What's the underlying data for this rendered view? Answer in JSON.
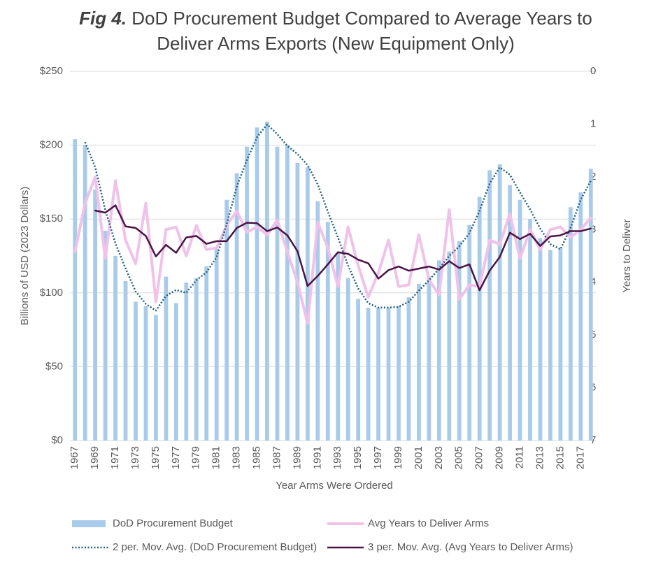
{
  "chart_data": {
    "type": "combo",
    "title_prefix": "Fig 4.",
    "title": "DoD Procurement Budget Compared to Average Years to Deliver Arms Exports (New Equipment Only)",
    "x_label": "Year Arms Were Ordered",
    "y_label": "Billions of USD (2023 Dollars)",
    "y2_label": "Years to Deliver",
    "categories": [
      "1967",
      null,
      "1969",
      null,
      "1971",
      null,
      "1973",
      null,
      "1975",
      null,
      "1977",
      null,
      "1979",
      null,
      "1981",
      null,
      "1983",
      null,
      "1985",
      null,
      "1987",
      null,
      "1989",
      null,
      "1991",
      null,
      "1993",
      null,
      "1995",
      null,
      "1997",
      null,
      "1999",
      null,
      "2001",
      null,
      "2003",
      null,
      "2005",
      null,
      "2007",
      null,
      "2009",
      null,
      "2011",
      null,
      "2013",
      null,
      "2015",
      null,
      "2017",
      null
    ],
    "ylim": [
      0,
      250
    ],
    "yticks": [
      {
        "value": 0,
        "label": "$0"
      },
      {
        "value": 50,
        "label": "$50"
      },
      {
        "value": 100,
        "label": "$100"
      },
      {
        "value": 150,
        "label": "$150"
      },
      {
        "value": 200,
        "label": "$200"
      },
      {
        "value": 250,
        "label": "$250"
      }
    ],
    "y2lim": [
      7,
      0
    ],
    "y2ticks": [
      0,
      1,
      2,
      3,
      4,
      5,
      6,
      7
    ],
    "grid": true,
    "legend": "bottom",
    "series": [
      {
        "name": "DoD Procurement Budget",
        "type": "bar",
        "color": "#a9cbea",
        "values": [
          204,
          200,
          170,
          142,
          125,
          108,
          94,
          91,
          85,
          111,
          93,
          107,
          110,
          118,
          130,
          163,
          181,
          199,
          212,
          216,
          199,
          200,
          188,
          185,
          162,
          148,
          127,
          110,
          96,
          90,
          90,
          90,
          91,
          97,
          106,
          111,
          122,
          128,
          135,
          146,
          165,
          183,
          187,
          173,
          163,
          150,
          137,
          129,
          130,
          158,
          168,
          184
        ]
      },
      {
        "name": "Avg Years to Deliver Arms",
        "type": "line",
        "axis": "y2",
        "color": "#f0c2e9",
        "width": 4,
        "values": [
          3.42,
          2.5,
          2.0,
          3.55,
          2.07,
          3.2,
          3.65,
          2.5,
          4.37,
          3.0,
          2.95,
          3.5,
          2.92,
          3.38,
          3.35,
          2.92,
          2.65,
          3.05,
          2.95,
          3.1,
          2.82,
          3.42,
          4.0,
          4.78,
          2.86,
          3.35,
          4.08,
          2.95,
          3.68,
          4.28,
          3.82,
          3.2,
          4.08,
          4.05,
          3.1,
          3.95,
          4.24,
          2.62,
          4.32,
          4.05,
          4.08,
          3.2,
          3.28,
          2.7,
          3.55,
          3.0,
          3.38,
          3.0,
          2.95,
          3.15,
          3.0,
          2.78
        ]
      },
      {
        "name": "2 per. Mov. Avg. (DoD Procurement Budget)",
        "type": "line",
        "dash": "dotted",
        "color": "#1f5f7f",
        "width": 2.5,
        "values": [
          null,
          202,
          185,
          156,
          133.5,
          116.5,
          101,
          92.5,
          88,
          98,
          102,
          100,
          108.5,
          114,
          124,
          146.5,
          172,
          190,
          205.5,
          214,
          207.5,
          199.5,
          194,
          186.5,
          173.5,
          155,
          137.5,
          118.5,
          103,
          93,
          90,
          90,
          90.5,
          94,
          101.5,
          108.5,
          116.5,
          125,
          131.5,
          140.5,
          155.5,
          174,
          185,
          180,
          168,
          156.5,
          143.5,
          133,
          129.5,
          144,
          163,
          176
        ]
      },
      {
        "name": "3 per. Mov. Avg. (Avg Years to Deliver Arms)",
        "type": "line",
        "axis": "y2",
        "color": "#4b1446",
        "width": 2.5,
        "values": [
          null,
          null,
          2.64,
          2.68,
          2.54,
          2.94,
          2.97,
          3.12,
          3.51,
          3.29,
          3.44,
          3.15,
          3.12,
          3.27,
          3.22,
          3.22,
          2.97,
          2.87,
          2.88,
          3.03,
          2.96,
          3.11,
          3.41,
          4.07,
          3.88,
          3.66,
          3.43,
          3.46,
          3.57,
          3.64,
          3.93,
          3.77,
          3.7,
          3.78,
          3.74,
          3.7,
          3.76,
          3.6,
          3.73,
          3.66,
          4.15,
          3.78,
          3.52,
          3.06,
          3.18,
          3.08,
          3.31,
          3.13,
          3.11,
          3.03,
          3.03,
          2.98
        ]
      }
    ]
  }
}
